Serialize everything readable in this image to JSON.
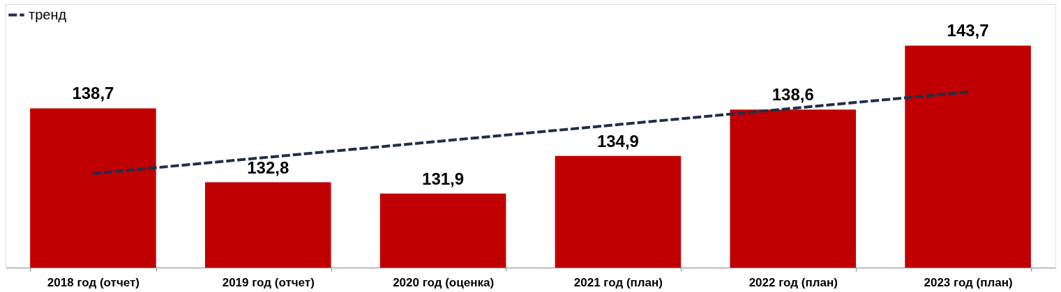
{
  "chart_data": {
    "type": "bar",
    "categories": [
      "2018 год (отчет)",
      "2019 год (отчет)",
      "2020 год (оценка)",
      "2021 год (план)",
      "2022 год (план)",
      "2023 год (план)"
    ],
    "series": [
      {
        "color": "#c00000",
        "values": [
          138.7,
          132.8,
          131.9,
          134.9,
          138.6,
          143.7
        ],
        "value_labels": [
          "138,7",
          "132,8",
          "131,9",
          "134,9",
          "138,6",
          "143,7"
        ]
      },
      {
        "type": "line",
        "name": "тренд",
        "color": "#1f2f4a",
        "line_style": "dashed",
        "values": [
          133.5,
          134.8,
          136.1,
          137.4,
          138.7,
          140.0
        ]
      }
    ],
    "ylim": [
      126,
      147
    ],
    "tick_labels": "x",
    "grid": false,
    "legend": "top left"
  }
}
